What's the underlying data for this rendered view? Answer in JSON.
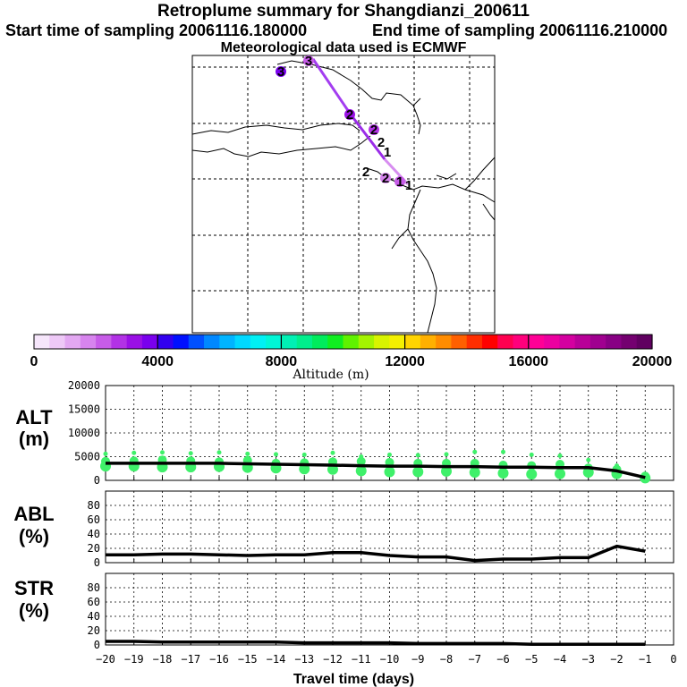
{
  "header": {
    "title": "Retroplume summary for Shangdianzi_200611",
    "start": "Start time of sampling 20061116.180000",
    "end": "End time of sampling 20061116.210000",
    "met": "Meteorological data used is ECMWF"
  },
  "map": {
    "trajectory_labels": [
      "3",
      "3",
      "2",
      "2",
      "2",
      "1",
      "2",
      "2",
      "1",
      "1"
    ]
  },
  "colorbar": {
    "title": "Altitude (m)",
    "tick_labels": [
      "0",
      "4000",
      "8000",
      "12000",
      "16000",
      "20000"
    ],
    "colors": [
      "#f6e6fb",
      "#eec9f7",
      "#e3a8f2",
      "#d784ee",
      "#c75ce8",
      "#b232e6",
      "#9a10e6",
      "#7a00ee",
      "#3200f0",
      "#0010ff",
      "#0050ff",
      "#0088ff",
      "#00b4ff",
      "#00d8ff",
      "#00f0f4",
      "#00f6d6",
      "#00f0b4",
      "#00ee8c",
      "#00ec5c",
      "#10ee20",
      "#60f200",
      "#a4f400",
      "#d8f400",
      "#f4f000",
      "#ffd400",
      "#ffb000",
      "#ff8c00",
      "#ff6000",
      "#ff2e00",
      "#ff0000",
      "#ff0050",
      "#ff007c",
      "#ff0096",
      "#ec00a0",
      "#d400a0",
      "#b80098",
      "#a00090",
      "#880084",
      "#740070",
      "#600060"
    ]
  },
  "chart_data": [
    {
      "type": "line",
      "panel": "ALT",
      "ylabel_line1": "ALT",
      "ylabel_line2": "(m)",
      "ylim": [
        0,
        20000
      ],
      "yticks": [
        "0",
        "5000",
        "10000",
        "15000",
        "20000"
      ],
      "x": [
        -20,
        -19,
        -18,
        -17,
        -16,
        -15,
        -14,
        -13,
        -12,
        -11,
        -10,
        -9,
        -8,
        -7,
        -6,
        -5,
        -4,
        -3,
        -2,
        -1
      ],
      "series": [
        {
          "name": "mean altitude",
          "values": [
            3600,
            3600,
            3600,
            3600,
            3600,
            3500,
            3400,
            3300,
            3200,
            3100,
            3000,
            3000,
            2900,
            2900,
            2800,
            2800,
            2700,
            2700,
            2000,
            600
          ]
        }
      ],
      "scatter_top": [
        5600,
        5800,
        5900,
        5700,
        5900,
        5600,
        5500,
        5400,
        5800,
        5000,
        5400,
        5300,
        5500,
        6000,
        6000,
        5400,
        5200,
        4300,
        3100,
        1300
      ],
      "scatter_mid": [
        4000,
        4100,
        4300,
        4100,
        3900,
        4200,
        3600,
        3700,
        3900,
        4000,
        3800,
        3600,
        3600,
        3600,
        3200,
        3100,
        3400,
        2600,
        2300,
        900
      ],
      "scatter_bottom": [
        3000,
        3000,
        2800,
        2800,
        2900,
        2700,
        2600,
        2400,
        2300,
        2000,
        1800,
        1800,
        1900,
        1700,
        1500,
        1300,
        1400,
        1700,
        1400,
        500
      ]
    },
    {
      "type": "line",
      "panel": "ABL",
      "ylabel_line1": "ABL",
      "ylabel_line2": "(%)",
      "ylim": [
        0,
        100
      ],
      "yticks": [
        "0",
        "20",
        "40",
        "60",
        "80"
      ],
      "x": [
        -20,
        -19,
        -18,
        -17,
        -16,
        -15,
        -14,
        -13,
        -12,
        -11,
        -10,
        -9,
        -8,
        -7,
        -6,
        -5,
        -4,
        -3,
        -2,
        -1
      ],
      "series": [
        {
          "name": "ABL fraction",
          "values": [
            11,
            11,
            12,
            12,
            11,
            10,
            11,
            11,
            14,
            14,
            10,
            8,
            8,
            3,
            5,
            5,
            7,
            7,
            23,
            16
          ]
        }
      ]
    },
    {
      "type": "line",
      "panel": "STR",
      "ylabel_line1": "STR",
      "ylabel_line2": "(%)",
      "ylim": [
        0,
        100
      ],
      "yticks": [
        "0",
        "20",
        "40",
        "60",
        "80"
      ],
      "x": [
        -20,
        -19,
        -18,
        -17,
        -16,
        -15,
        -14,
        -13,
        -12,
        -11,
        -10,
        -9,
        -8,
        -7,
        -6,
        -5,
        -4,
        -3,
        -2,
        -1
      ],
      "series": [
        {
          "name": "STR fraction",
          "values": [
            5,
            5,
            4,
            4,
            4,
            4,
            4,
            3,
            3,
            3,
            3,
            2,
            2,
            2,
            2,
            1,
            1,
            1,
            1,
            1
          ]
        }
      ],
      "xlabel": "Travel time (days)",
      "xtick_labels": [
        "−20",
        "−19",
        "−18",
        "−17",
        "−16",
        "−15",
        "−14",
        "−13",
        "−12",
        "−11",
        "−10",
        "−9",
        "−8",
        "−7",
        "−6",
        "−5",
        "−4",
        "−3",
        "−2",
        "−1",
        "0"
      ]
    }
  ]
}
